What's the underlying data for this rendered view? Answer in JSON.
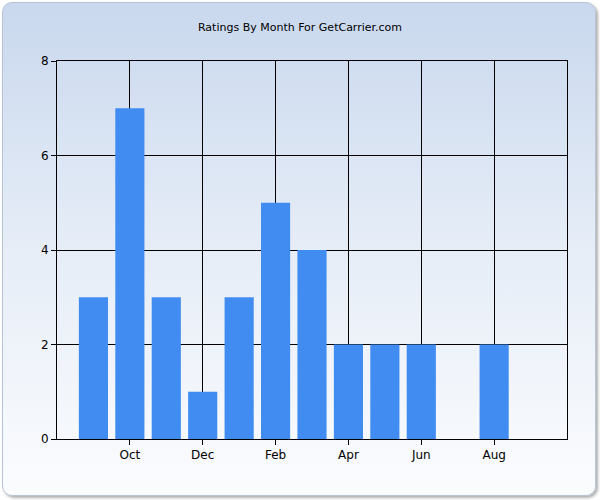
{
  "chart_data": {
    "type": "bar",
    "title": "Ratings By Month For GetCarrier.com",
    "categories": [
      null,
      "Oct",
      null,
      "Dec",
      null,
      "Feb",
      null,
      "Apr",
      null,
      "Jun",
      null,
      "Aug",
      null
    ],
    "values": [
      3,
      7,
      3,
      1,
      3,
      5,
      4,
      2,
      2,
      2,
      0,
      2,
      0
    ],
    "color": "#418cf0",
    "ylim": [
      0,
      8
    ],
    "yticks": [
      0,
      2,
      4,
      6,
      8
    ],
    "grid": true
  }
}
